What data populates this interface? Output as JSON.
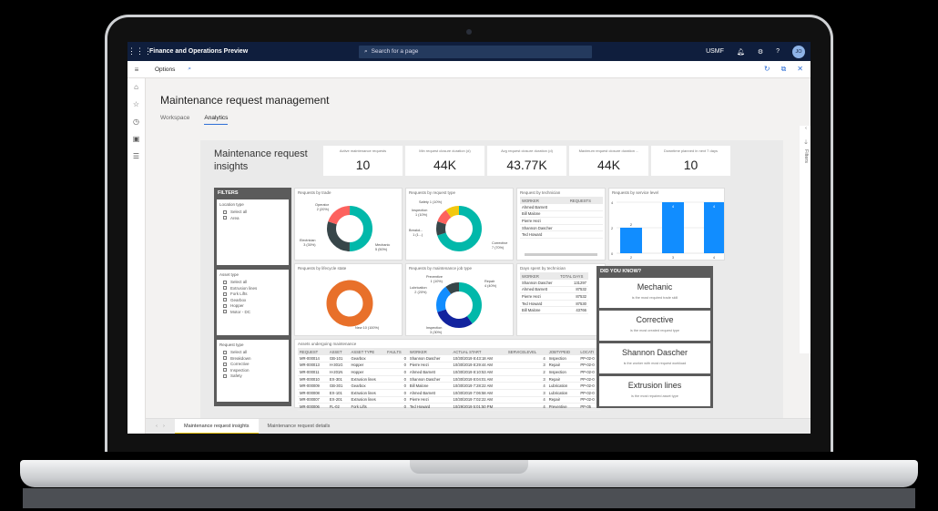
{
  "topbar": {
    "app_title": "Finance and Operations Preview",
    "search_placeholder": "Search for a page",
    "company": "USMF",
    "avatar_initials": "JO",
    "help": "?"
  },
  "optbar": {
    "options_label": "Options"
  },
  "page": {
    "title": "Maintenance request management",
    "tabs": [
      {
        "label": "Workspace"
      },
      {
        "label": "Analytics"
      }
    ]
  },
  "report": {
    "title": "Maintenance request insights",
    "kpis": [
      {
        "label": "Active maintenance requests",
        "value": "10"
      },
      {
        "label": "Min request closure duration (d)",
        "value": "44K"
      },
      {
        "label": "Avg request closure duration (d)",
        "value": "43.77K"
      },
      {
        "label": "Maximum request closure duration ...",
        "value": "44K"
      },
      {
        "label": "Downtime planned in next 7 days",
        "value": "10"
      }
    ],
    "filters": {
      "header": "FILTERS",
      "groups": [
        {
          "title": "Location type",
          "items": [
            "Select all",
            "Area"
          ]
        },
        {
          "title": "Asset type",
          "items": [
            "Select all",
            "Extrusion lines",
            "Fork Lifts",
            "Gearbox",
            "Hopper",
            "Motor - DC"
          ]
        },
        {
          "title": "Request type",
          "items": [
            "Select all",
            "Breakdown",
            "Corrective",
            "Inspection",
            "Safety"
          ]
        }
      ]
    },
    "by_trade": {
      "title": "Requests by trade",
      "labels": [
        "Operator",
        "2 (20%)",
        "Electrician",
        "3 (30%)",
        "Mechanic",
        "5 (50%)"
      ]
    },
    "by_request_type": {
      "title": "Requests by request type",
      "labels": [
        "Safety 1 (10%)",
        "Inspection",
        "1 (10%)",
        "Breakd...",
        "1 (1...)",
        "Corrective",
        "7 (70%)"
      ]
    },
    "by_technician": {
      "title": "Request by technician",
      "columns": [
        "WORKER",
        "REQUESTS"
      ],
      "rows": [
        "Ahmed Barnett",
        "Bill Malone",
        "Pierre Hezi",
        "Shannon Dascher",
        "Ted Howard"
      ]
    },
    "by_service_level": {
      "title": "Requests by service level"
    },
    "by_lifecycle": {
      "title": "Requests by lifecycle state",
      "label": "New 10 (100%)"
    },
    "by_job_type": {
      "title": "Requests by maintenance job type",
      "labels": [
        "Preventive",
        "1 (10%)",
        "Lubrication",
        "2 (20%)",
        "Repair",
        "4 (40%)",
        "Inspection",
        "3 (30%)"
      ]
    },
    "days_by_technician": {
      "title": "Days spent by technician",
      "columns": [
        "WORKER",
        "TOTAL DAYS"
      ],
      "rows": [
        [
          "Shannon Dascher",
          "131297"
        ],
        [
          "Ahmed Barnett",
          "87532"
        ],
        [
          "Pierre Hezi",
          "87532"
        ],
        [
          "Ted Howard",
          "87530"
        ],
        [
          "Bill Malone",
          "43766"
        ]
      ]
    },
    "did_you_know": {
      "header": "DID YOU KNOW?",
      "tiles": [
        {
          "big": "Mechanic",
          "small": "is the most required trade skill"
        },
        {
          "big": "Corrective",
          "small": "is the most created request type"
        },
        {
          "big": "Shannon Dascher",
          "small": "is the worker with most request workload"
        },
        {
          "big": "Extrusion lines",
          "small": "is the most repaired asset type"
        }
      ]
    },
    "assets": {
      "title": "Assets undergoing maintenance",
      "columns": [
        "REQUEST",
        "ASSET",
        "ASSET TYPE",
        "FAULTS",
        "WORKER",
        "ACTUAL START",
        "SERVICELEVEL",
        "JOBTYPEID",
        "LOCATI"
      ],
      "rows": [
        [
          "MR-000014",
          "GB-101",
          "Gearbox",
          "0",
          "Shannon Dascher",
          "10/30/2019 8:43:18 AM",
          "4",
          "Inspection",
          "PP-02-0"
        ],
        [
          "MR-000013",
          "H-301G",
          "Hopper",
          "0",
          "Pierre Hezi",
          "10/30/2019 8:29:44 AM",
          "3",
          "Repair",
          "PP-02-0"
        ],
        [
          "MR-000011",
          "H-201N",
          "Hopper",
          "0",
          "Ahmed Barnett",
          "10/30/2019 8:10:53 AM",
          "2",
          "Inspection",
          "PP-02-0"
        ],
        [
          "MR-000010",
          "EX-301",
          "Extrusion lines",
          "0",
          "Shannon Dascher",
          "10/30/2019 8:04:01 AM",
          "3",
          "Repair",
          "PP-02-0"
        ],
        [
          "MR-000009",
          "GB-301",
          "Gearbox",
          "0",
          "Bill Malone",
          "10/30/2019 7:28:22 AM",
          "4",
          "Lubrication",
          "PP-02-0"
        ],
        [
          "MR-000008",
          "EX-101",
          "Extrusion lines",
          "0",
          "Ahmed Barnett",
          "10/30/2019 7:06:58 AM",
          "3",
          "Lubrication",
          "PP-02-0"
        ],
        [
          "MR-000007",
          "EX-201",
          "Extrusion lines",
          "0",
          "Pierre Hezi",
          "10/30/2019 7:02:22 AM",
          "4",
          "Repair",
          "PP-02-0"
        ],
        [
          "MR-000006",
          "FL-02",
          "Fork Lifts",
          "0",
          "Ted Howard",
          "10/29/2019 5:01:50 PM",
          "4",
          "Preventive",
          "PP-05"
        ]
      ]
    },
    "filters_pane_label": "Filters",
    "bottom_tabs": [
      {
        "label": "Maintenance request insights"
      },
      {
        "label": "Maintenance request details"
      }
    ]
  },
  "colors": {
    "topbar": "#0f1e3d",
    "accent": "#2e6fd6",
    "teal": "#01b8aa",
    "dark": "#374649",
    "red": "#fd625e",
    "yellow": "#f2c80f",
    "orange": "#e8702a",
    "bar_blue": "#118dff",
    "navy": "#12239e"
  },
  "chart_data": [
    {
      "type": "pie",
      "title": "Requests by trade",
      "categories": [
        "Mechanic",
        "Electrician",
        "Operator"
      ],
      "values": [
        5,
        3,
        2
      ]
    },
    {
      "type": "pie",
      "title": "Requests by request type",
      "categories": [
        "Corrective",
        "Breakdown",
        "Inspection",
        "Safety"
      ],
      "values": [
        7,
        1,
        1,
        1
      ]
    },
    {
      "type": "bar",
      "title": "Requests by service level",
      "categories": [
        "2",
        "3",
        "4"
      ],
      "values": [
        2,
        4,
        4
      ],
      "ylim": [
        0,
        4
      ]
    },
    {
      "type": "pie",
      "title": "Requests by lifecycle state",
      "categories": [
        "New"
      ],
      "values": [
        10
      ]
    },
    {
      "type": "pie",
      "title": "Requests by maintenance job type",
      "categories": [
        "Repair",
        "Inspection",
        "Lubrication",
        "Preventive"
      ],
      "values": [
        4,
        3,
        2,
        1
      ]
    }
  ]
}
